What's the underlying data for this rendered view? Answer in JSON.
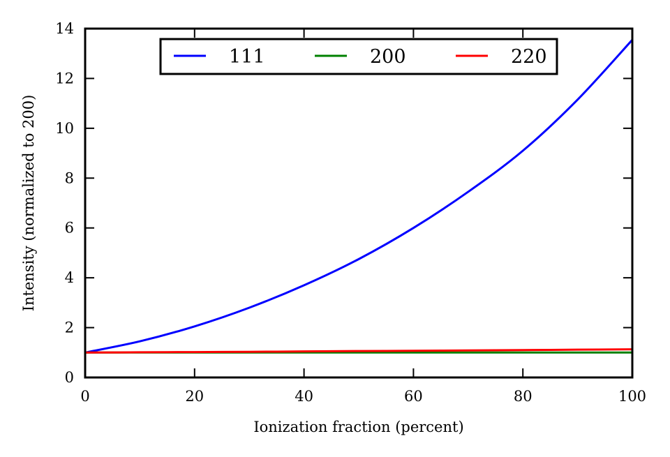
{
  "chart_data": {
    "type": "line",
    "title": "",
    "xlabel": "Ionization fraction (percent)",
    "ylabel": "Intensity (normalized to 200)",
    "xlim": [
      0,
      100
    ],
    "ylim": [
      0,
      14
    ],
    "xticks": [
      0,
      20,
      40,
      60,
      80,
      100
    ],
    "yticks": [
      0,
      2,
      4,
      6,
      8,
      10,
      12,
      14
    ],
    "grid": false,
    "legend_position": "top-center",
    "x": [
      0,
      10,
      20,
      30,
      40,
      50,
      60,
      70,
      80,
      90,
      100
    ],
    "series": [
      {
        "name": "111",
        "color": "#0000ff",
        "values": [
          1.0,
          1.45,
          2.05,
          2.8,
          3.7,
          4.75,
          6.0,
          7.45,
          9.1,
          11.15,
          13.55
        ]
      },
      {
        "name": "200",
        "color": "#008000",
        "values": [
          1.0,
          1.0,
          1.0,
          1.0,
          1.0,
          1.0,
          1.0,
          1.0,
          1.0,
          1.0,
          1.0
        ]
      },
      {
        "name": "220",
        "color": "#ff0000",
        "values": [
          1.0,
          1.01,
          1.02,
          1.03,
          1.045,
          1.06,
          1.07,
          1.085,
          1.1,
          1.115,
          1.13
        ]
      }
    ]
  }
}
